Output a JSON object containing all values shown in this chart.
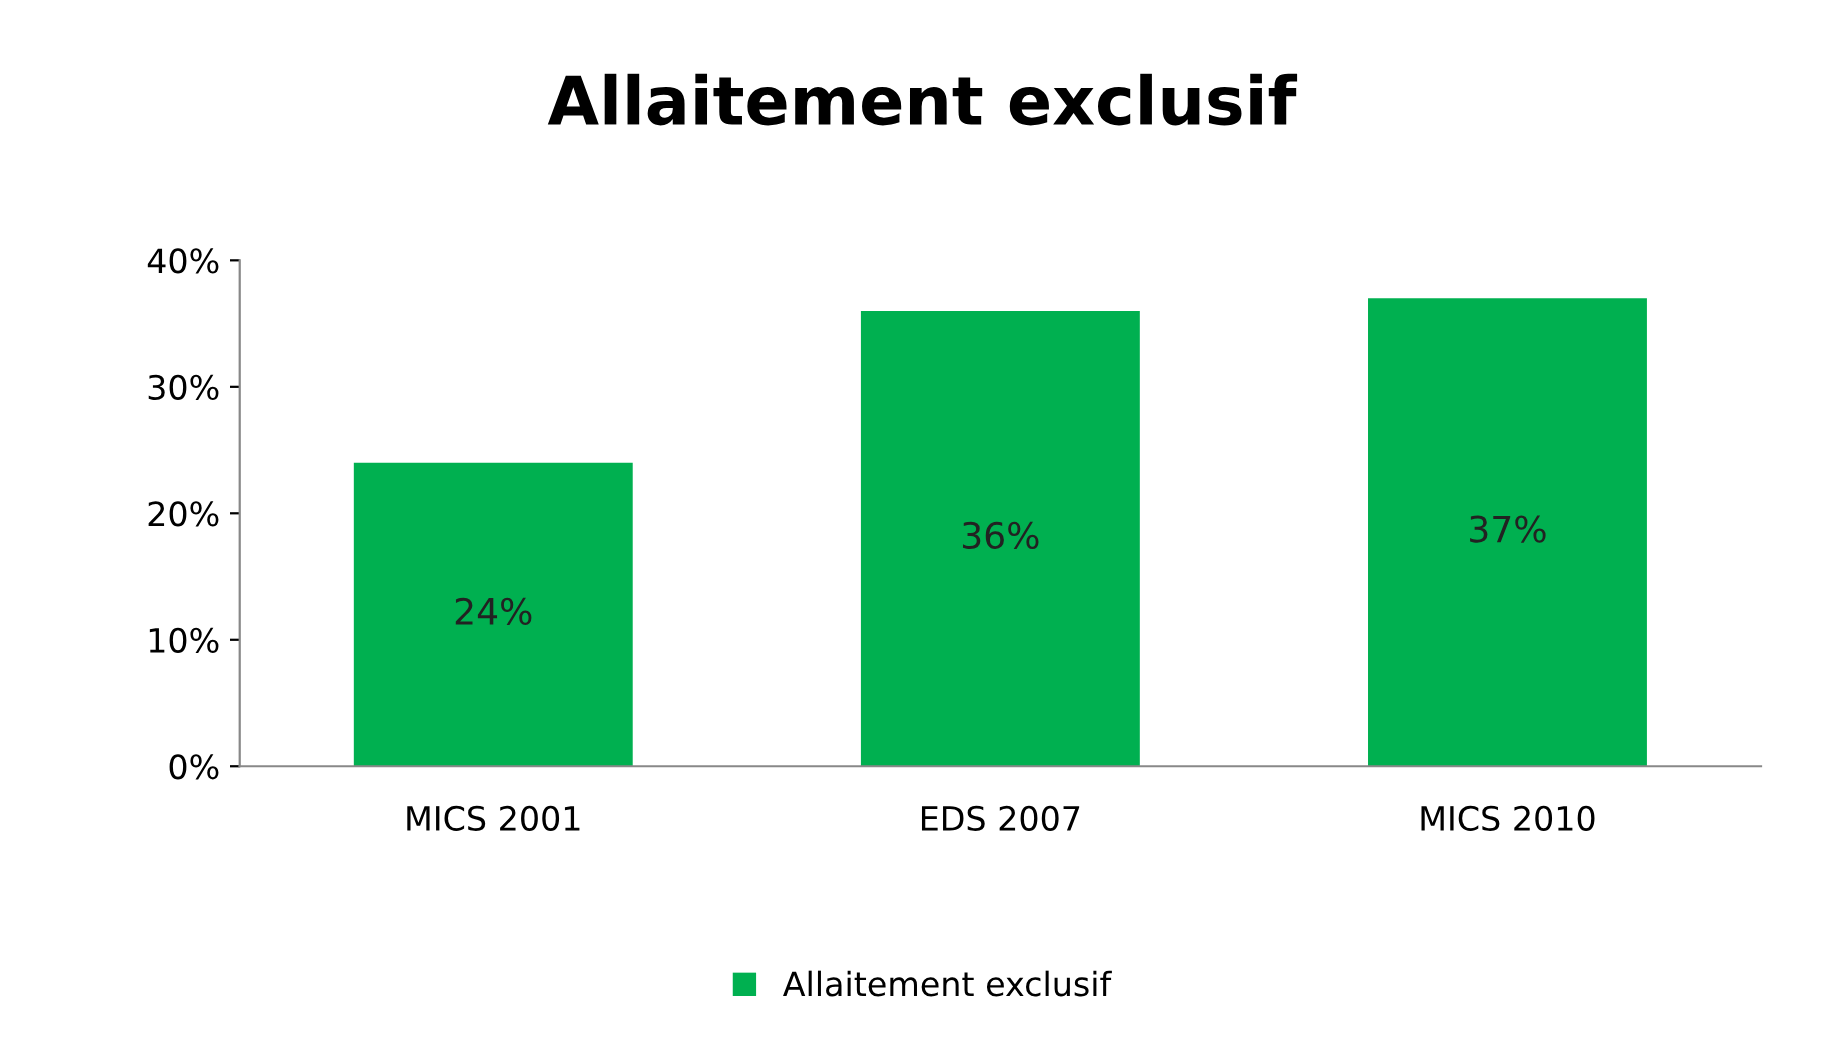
{
  "chart_data": {
    "type": "bar",
    "title": "Allaitement exclusif",
    "categories": [
      "MICS 2001",
      "EDS 2007",
      "MICS 2010"
    ],
    "series": [
      {
        "name": "Allaitement exclusif",
        "color": "#00b050",
        "values": [
          24,
          36,
          37
        ],
        "value_labels": [
          "24%",
          "36%",
          "37%"
        ]
      }
    ],
    "ylim": [
      0,
      40
    ],
    "yticks": [
      {
        "value": 0,
        "label": "0%"
      },
      {
        "value": 10,
        "label": "10%"
      },
      {
        "value": 20,
        "label": "20%"
      },
      {
        "value": 30,
        "label": "30%"
      },
      {
        "value": 40,
        "label": "40%"
      }
    ],
    "grid": false,
    "legend": "bottom"
  }
}
